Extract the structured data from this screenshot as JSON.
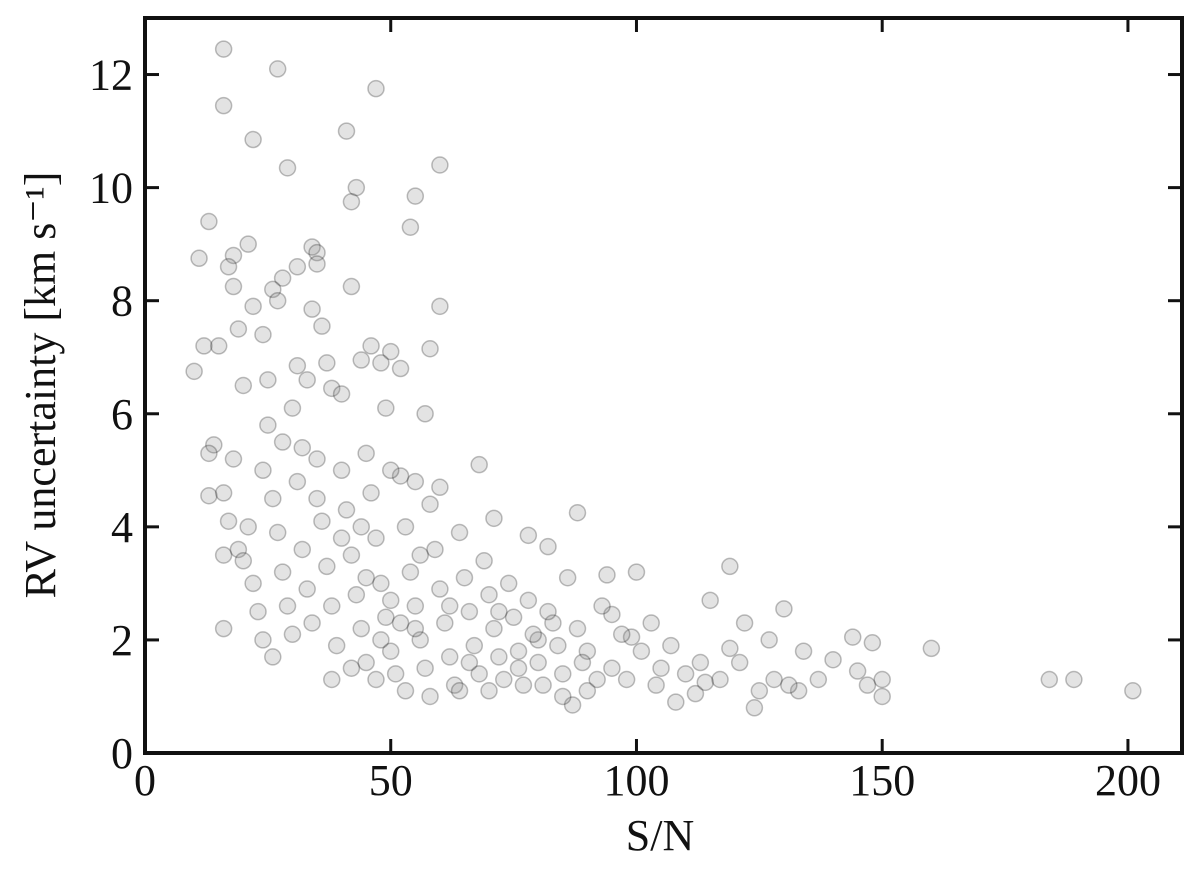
{
  "chart_data": {
    "type": "scatter",
    "xlabel": "S/N",
    "ylabel": "RV uncertainty [km s⁻¹]",
    "xlim": [
      0,
      211
    ],
    "ylim": [
      0,
      13
    ],
    "xticks": [
      0,
      50,
      100,
      150,
      200
    ],
    "yticks": [
      0,
      2,
      4,
      6,
      8,
      10,
      12
    ],
    "color": "#808080",
    "x": [
      16,
      27,
      47,
      16,
      41,
      22,
      60,
      29,
      43,
      42,
      55,
      54,
      13,
      21,
      34,
      11,
      18,
      35,
      17,
      31,
      35,
      28,
      42,
      18,
      26,
      22,
      27,
      34,
      60,
      12,
      15,
      10,
      19,
      24,
      36,
      46,
      50,
      58,
      44,
      48,
      52,
      37,
      31,
      20,
      25,
      33,
      38,
      40,
      49,
      57,
      14,
      13,
      18,
      16,
      13,
      17,
      16,
      19,
      16,
      26,
      68,
      71,
      88,
      78,
      82,
      94,
      100,
      119,
      115,
      130,
      122,
      127,
      144,
      148,
      160,
      184,
      189,
      201,
      150,
      147,
      150,
      145,
      140,
      137,
      133,
      134,
      125,
      124,
      119,
      114,
      108,
      112,
      104,
      99,
      95,
      90,
      92,
      87,
      85,
      83,
      80,
      76,
      73,
      70,
      24,
      26,
      27,
      28,
      29,
      30,
      31,
      32,
      33,
      34,
      35,
      36,
      37,
      38,
      39,
      40,
      41,
      42,
      43,
      44,
      45,
      46,
      47,
      48,
      49,
      50,
      51,
      52,
      53,
      54,
      55,
      56,
      57,
      58,
      59,
      60,
      61,
      62,
      63,
      64,
      65,
      66,
      67,
      68,
      69,
      70,
      71,
      72,
      74,
      75,
      76,
      78,
      79,
      80,
      81,
      82,
      84,
      85,
      86,
      88,
      89,
      90,
      93,
      95,
      97,
      98,
      101,
      103,
      105,
      107,
      110,
      113,
      117,
      121,
      128,
      131,
      38,
      42,
      47,
      53,
      58,
      64,
      22,
      23,
      24,
      21,
      20,
      25,
      28,
      30,
      32,
      45,
      50,
      55,
      60,
      35,
      40,
      45,
      50,
      55,
      44,
      48,
      52,
      56,
      62,
      66,
      72,
      77
    ],
    "values": [
      12.45,
      12.1,
      11.75,
      11.45,
      11,
      10.85,
      10.4,
      10.35,
      10,
      9.75,
      9.85,
      9.3,
      9.4,
      9,
      8.95,
      8.75,
      8.8,
      8.85,
      8.6,
      8.6,
      8.65,
      8.4,
      8.25,
      8.25,
      8.2,
      7.9,
      8,
      7.85,
      7.9,
      7.2,
      7.2,
      6.75,
      7.5,
      7.4,
      7.55,
      7.2,
      7.1,
      7.15,
      6.95,
      6.9,
      6.8,
      6.9,
      6.85,
      6.5,
      6.6,
      6.6,
      6.45,
      6.35,
      6.1,
      6,
      5.45,
      5.3,
      5.2,
      4.6,
      4.55,
      4.1,
      3.5,
      3.6,
      2.2,
      1.7,
      5.1,
      4.15,
      4.25,
      3.85,
      3.65,
      3.15,
      3.2,
      3.3,
      2.7,
      2.55,
      2.3,
      2,
      2.05,
      1.95,
      1.85,
      1.3,
      1.3,
      1.1,
      1,
      1.2,
      1.3,
      1.45,
      1.65,
      1.3,
      1.1,
      1.8,
      1.1,
      0.8,
      1.85,
      1.25,
      0.9,
      1.05,
      1.2,
      2.05,
      2.45,
      1.8,
      1.3,
      0.85,
      1,
      2.3,
      2,
      1.8,
      1.3,
      1.1,
      5,
      4.5,
      3.9,
      3.2,
      2.6,
      2.1,
      4.8,
      3.6,
      2.9,
      2.3,
      5.2,
      4.1,
      3.3,
      2.6,
      1.9,
      5,
      4.3,
      3.5,
      2.8,
      2.2,
      1.6,
      4.6,
      3.8,
      3,
      2.4,
      1.8,
      1.4,
      4.9,
      4,
      3.2,
      2.6,
      2,
      1.5,
      4.4,
      3.6,
      2.9,
      2.3,
      1.7,
      1.2,
      3.9,
      3.1,
      2.5,
      1.9,
      1.4,
      3.4,
      2.8,
      2.2,
      1.7,
      3,
      2.4,
      1.5,
      2.7,
      2.1,
      1.6,
      1.2,
      2.5,
      1.9,
      1.4,
      3.1,
      2.2,
      1.6,
      1.1,
      2.6,
      1.5,
      2.1,
      1.3,
      1.8,
      2.3,
      1.5,
      1.9,
      1.4,
      1.6,
      1.3,
      1.6,
      1.3,
      1.2,
      1.3,
      1.5,
      1.3,
      1.1,
      1,
      1.1,
      3,
      2.5,
      2,
      4,
      3.4,
      5.8,
      5.5,
      6.1,
      5.4,
      5.3,
      5,
      4.8,
      4.7,
      4.5,
      3.8,
      3.1,
      2.7,
      2.2,
      4,
      2,
      2.3,
      3.5,
      2.6,
      1.6,
      2.5,
      1.2
    ]
  }
}
